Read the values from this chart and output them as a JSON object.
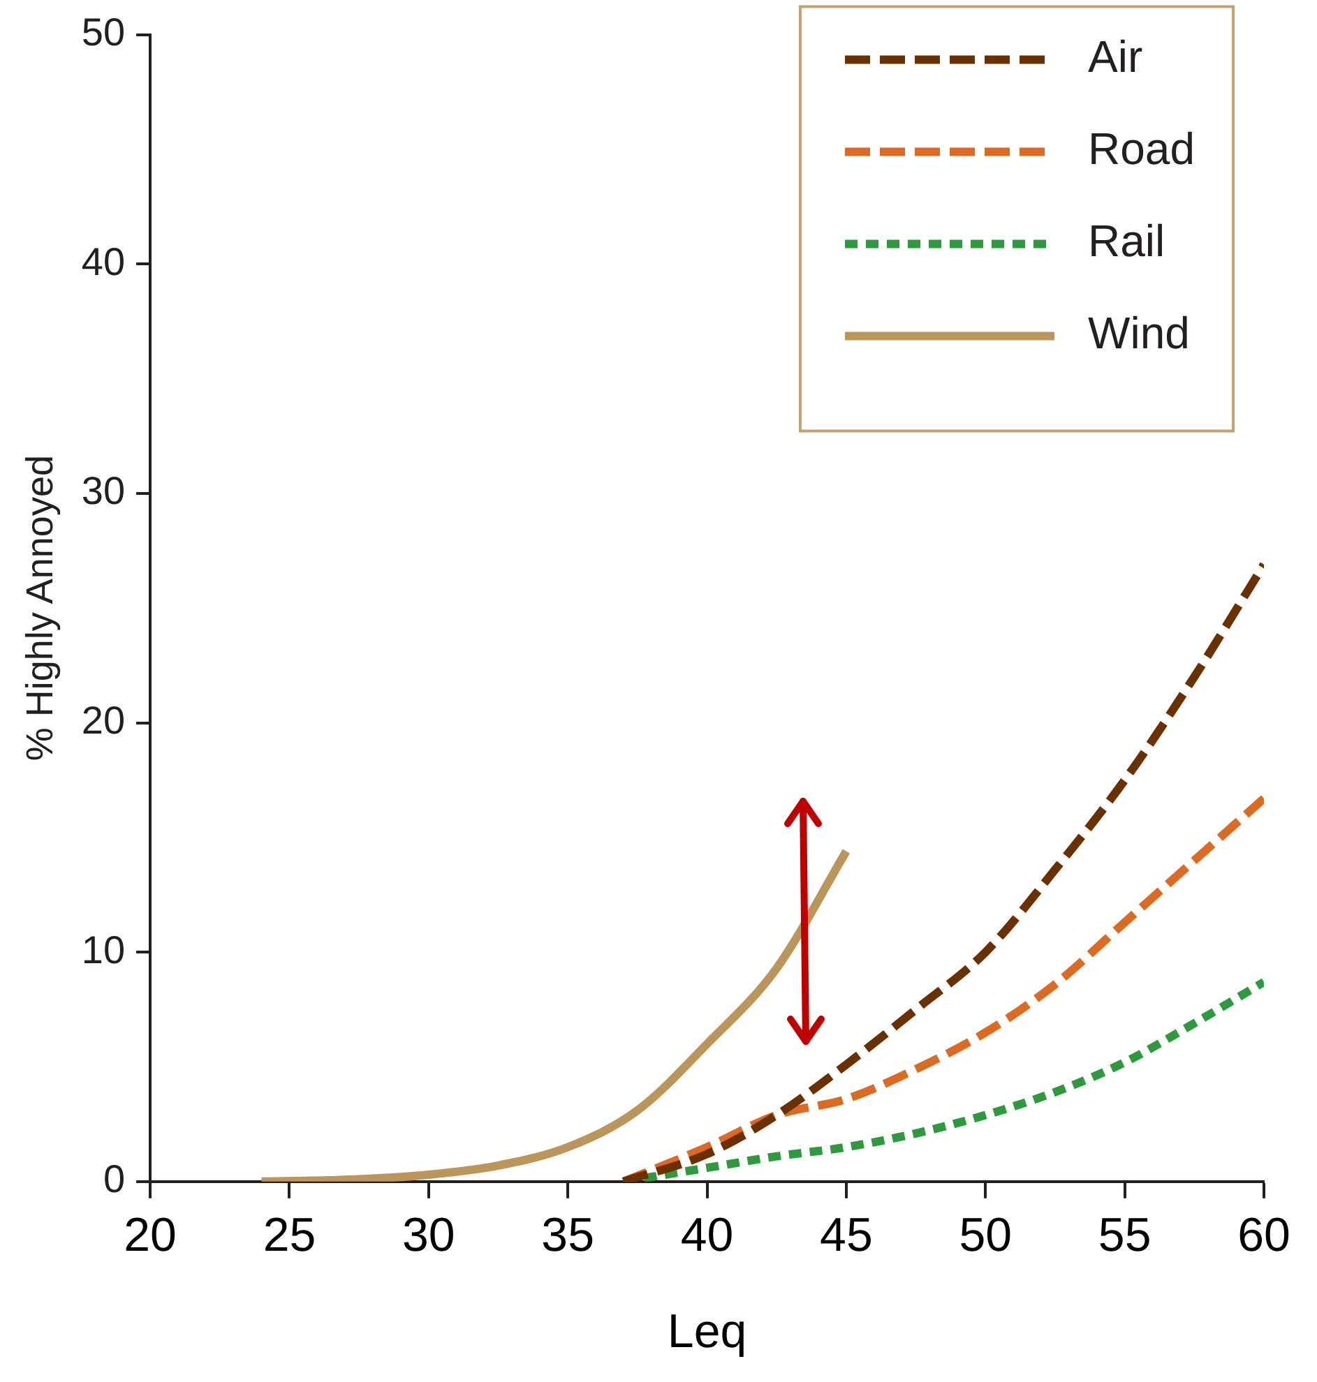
{
  "chart_data": {
    "type": "line",
    "xlabel": "Leq",
    "ylabel": "% Highly Annoyed",
    "xlim": [
      20,
      60
    ],
    "xticks": [
      20,
      25,
      30,
      35,
      40,
      45,
      50,
      55,
      60
    ],
    "ylim": [
      0,
      50
    ],
    "yticks": [
      0,
      10,
      20,
      30,
      40,
      50
    ],
    "grid": false,
    "legend": "top right",
    "marker": "none",
    "series": [
      {
        "name": "Air",
        "color": "#6b3000",
        "line_style": "dashed",
        "x": [
          37,
          40,
          42.5,
          45,
          47.5,
          50,
          52.5,
          55,
          57.5,
          60
        ],
        "values": [
          0,
          1.2,
          2.9,
          5.1,
          7.5,
          10.0,
          13.6,
          17.5,
          22,
          26.9
        ]
      },
      {
        "name": "Road",
        "color": "#de6a22",
        "line_style": "dashed",
        "x": [
          37,
          40,
          42.5,
          45,
          47.5,
          50,
          52.5,
          55,
          57.5,
          60
        ],
        "values": [
          0,
          1.5,
          2.9,
          3.6,
          4.9,
          6.5,
          8.6,
          11.3,
          14.0,
          16.7
        ]
      },
      {
        "name": "Rail",
        "color": "#2e9a3e",
        "line_style": "dotted",
        "x": [
          37,
          40,
          42.5,
          45,
          47.5,
          50,
          52.5,
          55,
          57.5,
          60
        ],
        "values": [
          0,
          0.6,
          1.1,
          1.5,
          2.1,
          2.9,
          3.9,
          5.2,
          6.9,
          8.7
        ]
      },
      {
        "name": "Wind",
        "color": "#bc955a",
        "line_style": "solid",
        "x": [
          24,
          27.5,
          30,
          32.5,
          35,
          37.5,
          40,
          42.5,
          45
        ],
        "values": [
          0,
          0.1,
          0.3,
          0.7,
          1.5,
          3.1,
          6.0,
          9.3,
          14.4
        ]
      }
    ]
  }
}
